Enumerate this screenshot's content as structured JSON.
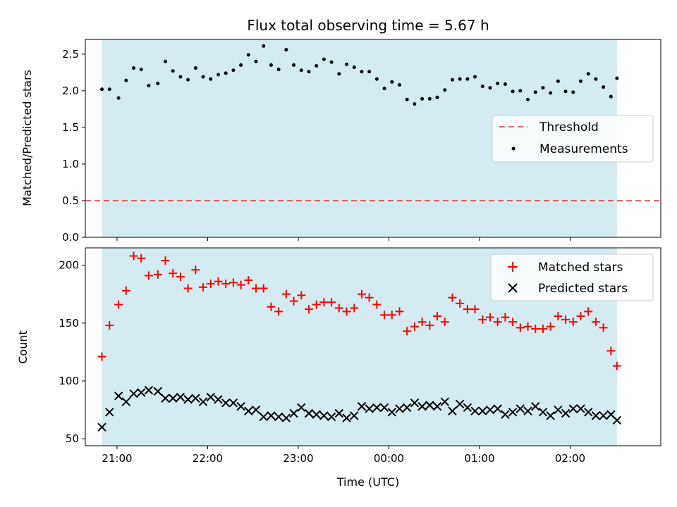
{
  "colors": {
    "band": "#d4ebf1",
    "threshold": "#e06666",
    "measurement": "#000000",
    "matched": "#ff0000",
    "predicted": "#000000"
  },
  "chart_data": [
    {
      "type": "scatter",
      "title": "Flux total observing time = 5.67 h",
      "xlabel": "",
      "ylabel": "Matched/Predicted stars",
      "xlim": [
        "20:39",
        "03:00"
      ],
      "ylim": [
        0,
        2.7
      ],
      "yticks": [
        0.0,
        0.5,
        1.0,
        1.5,
        2.0,
        2.5
      ],
      "ytick_labels": [
        "0.0",
        "0.5",
        "1.0",
        "1.5",
        "2.0",
        "2.5"
      ],
      "xticks": [
        "21:00",
        "22:00",
        "23:00",
        "00:00",
        "01:00",
        "02:00"
      ],
      "observing_window": [
        "20:50",
        "02:31"
      ],
      "threshold": 0.5,
      "legend": {
        "placement": "center-right",
        "entries": [
          "Threshold",
          "Measurements"
        ]
      },
      "series": [
        {
          "name": "Measurements",
          "marker": "dot",
          "x": [
            "20:50",
            "20:55",
            "21:01",
            "21:06",
            "21:11",
            "21:16",
            "21:21",
            "21:27",
            "21:32",
            "21:37",
            "21:42",
            "21:47",
            "21:52",
            "21:57",
            "22:02",
            "22:07",
            "22:12",
            "22:17",
            "22:22",
            "22:27",
            "22:32",
            "22:37",
            "22:42",
            "22:47",
            "22:52",
            "22:57",
            "23:02",
            "23:07",
            "23:12",
            "23:17",
            "23:22",
            "23:27",
            "23:32",
            "23:37",
            "23:42",
            "23:47",
            "23:52",
            "23:57",
            "00:02",
            "00:07",
            "00:12",
            "00:17",
            "00:22",
            "00:27",
            "00:32",
            "00:37",
            "00:42",
            "00:47",
            "00:52",
            "00:57",
            "01:02",
            "01:07",
            "01:12",
            "01:17",
            "01:22",
            "01:27",
            "01:32",
            "01:37",
            "01:42",
            "01:47",
            "01:52",
            "01:57",
            "02:02",
            "02:07",
            "02:12",
            "02:17",
            "02:22",
            "02:27",
            "02:31"
          ],
          "y": [
            2.02,
            2.02,
            1.9,
            2.14,
            2.31,
            2.29,
            2.07,
            2.1,
            2.4,
            2.27,
            2.19,
            2.15,
            2.31,
            2.19,
            2.16,
            2.22,
            2.24,
            2.28,
            2.35,
            2.49,
            2.4,
            2.61,
            2.35,
            2.29,
            2.56,
            2.35,
            2.28,
            2.26,
            2.34,
            2.43,
            2.39,
            2.23,
            2.36,
            2.32,
            2.26,
            2.26,
            2.16,
            2.03,
            2.12,
            2.08,
            1.88,
            1.82,
            1.89,
            1.89,
            1.91,
            2.01,
            2.15,
            2.16,
            2.16,
            2.19,
            2.06,
            2.04,
            2.1,
            2.09,
            1.99,
            2.0,
            1.88,
            1.98,
            2.04,
            1.97,
            2.13,
            1.99,
            1.98,
            2.13,
            2.23,
            2.16,
            2.05,
            1.92,
            2.17
          ]
        }
      ]
    },
    {
      "type": "scatter",
      "title": "",
      "xlabel": "Time (UTC)",
      "ylabel": "Count",
      "xlim": [
        "20:39",
        "03:00"
      ],
      "ylim": [
        44,
        215
      ],
      "yticks": [
        50,
        100,
        150,
        200
      ],
      "ytick_labels": [
        "50",
        "100",
        "150",
        "200"
      ],
      "xticks": [
        "21:00",
        "22:00",
        "23:00",
        "00:00",
        "01:00",
        "02:00"
      ],
      "xtick_labels": [
        "21:00",
        "22:00",
        "23:00",
        "00:00",
        "01:00",
        "02:00"
      ],
      "observing_window": [
        "20:50",
        "02:31"
      ],
      "legend": {
        "placement": "top-right",
        "entries": [
          "Matched stars",
          "Predicted stars"
        ]
      },
      "series": [
        {
          "name": "Matched stars",
          "marker": "plus",
          "x": [
            "20:50",
            "20:55",
            "21:01",
            "21:06",
            "21:11",
            "21:16",
            "21:21",
            "21:27",
            "21:32",
            "21:37",
            "21:42",
            "21:47",
            "21:52",
            "21:57",
            "22:02",
            "22:07",
            "22:12",
            "22:17",
            "22:22",
            "22:27",
            "22:32",
            "22:37",
            "22:42",
            "22:47",
            "22:52",
            "22:57",
            "23:02",
            "23:07",
            "23:12",
            "23:17",
            "23:22",
            "23:27",
            "23:32",
            "23:37",
            "23:42",
            "23:47",
            "23:52",
            "23:57",
            "00:02",
            "00:07",
            "00:12",
            "00:17",
            "00:22",
            "00:27",
            "00:32",
            "00:37",
            "00:42",
            "00:47",
            "00:52",
            "00:57",
            "01:02",
            "01:07",
            "01:12",
            "01:17",
            "01:22",
            "01:27",
            "01:32",
            "01:37",
            "01:42",
            "01:47",
            "01:52",
            "01:57",
            "02:02",
            "02:07",
            "02:12",
            "02:17",
            "02:22",
            "02:27",
            "02:31"
          ],
          "y": [
            121,
            148,
            166,
            178,
            208,
            206,
            191,
            192,
            204,
            193,
            190,
            180,
            196,
            181,
            184,
            186,
            184,
            185,
            183,
            187,
            180,
            180,
            164,
            160,
            175,
            169,
            174,
            162,
            166,
            168,
            168,
            163,
            160,
            163,
            175,
            172,
            166,
            157,
            157,
            160,
            143,
            147,
            151,
            148,
            156,
            151,
            172,
            167,
            162,
            162,
            153,
            155,
            151,
            155,
            151,
            146,
            147,
            145,
            145,
            147,
            156,
            153,
            151,
            156,
            160,
            151,
            146,
            126,
            113
          ]
        },
        {
          "name": "Predicted stars",
          "marker": "x",
          "x": [
            "20:50",
            "20:55",
            "21:01",
            "21:06",
            "21:11",
            "21:16",
            "21:21",
            "21:27",
            "21:32",
            "21:37",
            "21:42",
            "21:47",
            "21:52",
            "21:57",
            "22:02",
            "22:07",
            "22:12",
            "22:17",
            "22:22",
            "22:27",
            "22:32",
            "22:37",
            "22:42",
            "22:47",
            "22:52",
            "22:57",
            "23:02",
            "23:07",
            "23:12",
            "23:17",
            "23:22",
            "23:27",
            "23:32",
            "23:37",
            "23:42",
            "23:47",
            "23:52",
            "23:57",
            "00:02",
            "00:07",
            "00:12",
            "00:17",
            "00:22",
            "00:27",
            "00:32",
            "00:37",
            "00:42",
            "00:47",
            "00:52",
            "00:57",
            "01:02",
            "01:07",
            "01:12",
            "01:17",
            "01:22",
            "01:27",
            "01:32",
            "01:37",
            "01:42",
            "01:47",
            "01:52",
            "01:57",
            "02:02",
            "02:07",
            "02:12",
            "02:17",
            "02:22",
            "02:27",
            "02:31"
          ],
          "y": [
            60,
            73,
            87,
            82,
            89,
            90,
            92,
            91,
            85,
            85,
            86,
            84,
            85,
            82,
            86,
            84,
            81,
            81,
            78,
            74,
            75,
            69,
            70,
            69,
            68,
            72,
            77,
            72,
            71,
            70,
            69,
            72,
            68,
            70,
            78,
            76,
            77,
            77,
            73,
            76,
            77,
            81,
            78,
            79,
            78,
            82,
            74,
            80,
            77,
            74,
            74,
            75,
            76,
            71,
            73,
            76,
            74,
            78,
            73,
            70,
            75,
            72,
            76,
            76,
            73,
            70,
            70,
            71,
            66
          ]
        }
      ]
    }
  ]
}
